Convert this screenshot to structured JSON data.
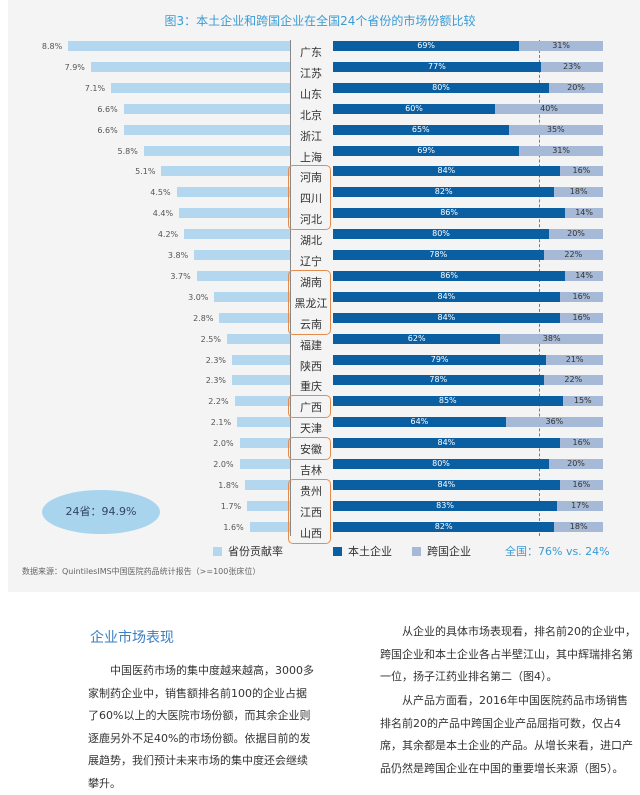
{
  "chart_data": {
    "type": "bar",
    "title": "图3：本土企业和跨国企业在全国24个省份的市场份额比较",
    "categories": [
      "广东",
      "江苏",
      "山东",
      "北京",
      "浙江",
      "上海",
      "河南",
      "四川",
      "河北",
      "湖北",
      "辽宁",
      "湖南",
      "黑龙江",
      "云南",
      "福建",
      "陕西",
      "重庆",
      "广西",
      "天津",
      "安徽",
      "吉林",
      "贵州",
      "江西",
      "山西"
    ],
    "contribution": [
      8.8,
      7.9,
      7.1,
      6.6,
      6.6,
      5.8,
      5.1,
      4.5,
      4.4,
      4.2,
      3.8,
      3.7,
      3.0,
      2.8,
      2.5,
      2.3,
      2.3,
      2.2,
      2.1,
      2.0,
      2.0,
      1.8,
      1.7,
      1.6
    ],
    "series": [
      {
        "name": "本土企业",
        "values": [
          69,
          77,
          80,
          60,
          65,
          69,
          84,
          82,
          86,
          80,
          78,
          86,
          84,
          84,
          62,
          79,
          78,
          85,
          64,
          84,
          80,
          84,
          83,
          82
        ]
      },
      {
        "name": "跨国企业",
        "values": [
          31,
          23,
          20,
          40,
          35,
          31,
          16,
          18,
          14,
          20,
          22,
          14,
          16,
          16,
          38,
          21,
          22,
          15,
          36,
          16,
          20,
          16,
          17,
          18
        ]
      }
    ],
    "national_domestic_share": 76,
    "highlight_groups": [
      [
        "河南",
        "四川",
        "河北"
      ],
      [
        "湖南",
        "黑龙江",
        "云南"
      ],
      [
        "广西"
      ],
      [
        "安徽"
      ],
      [
        "贵州",
        "江西",
        "山西"
      ]
    ],
    "legend": {
      "contribution": "省份贡献率",
      "domestic": "本土企业",
      "foreign": "跨国企业"
    },
    "national_label": "全国：76% vs. 24%",
    "summary": "24省：94.9%",
    "source": "数据来源：QuintilesIMS中国医院药品统计报告（>=100张床位）",
    "colors": {
      "contribution": "#b3d7ef",
      "domestic": "#0a5fa3",
      "foreign": "#a6b9d6",
      "highlight": "#e58c4c",
      "national_line": "#d9534f"
    }
  },
  "article": {
    "heading": "企业市场表现",
    "left_para": "中国医药市场的集中度越来越高，3000多家制药企业中，销售额排名前100的企业占据了60%以上的大医院市场份额，而其余企业则逐鹿另外不足40%的市场份额。依据目前的发展趋势，我们预计未来市场的集中度还会继续攀升。",
    "right_para1": "从企业的具体市场表现看，排名前20的企业中，跨国企业和本土企业各占半壁江山，其中辉瑞排名第一位，扬子江药业排名第二（图4）。",
    "right_para2": "从产品方面看，2016年中国医院药品市场销售排名前20的产品中跨国企业产品屈指可数，仅占4席，其余都是本土企业的产品。从增长来看，进口产品仍然是跨国企业在中国的重要增长来源（图5）。"
  }
}
